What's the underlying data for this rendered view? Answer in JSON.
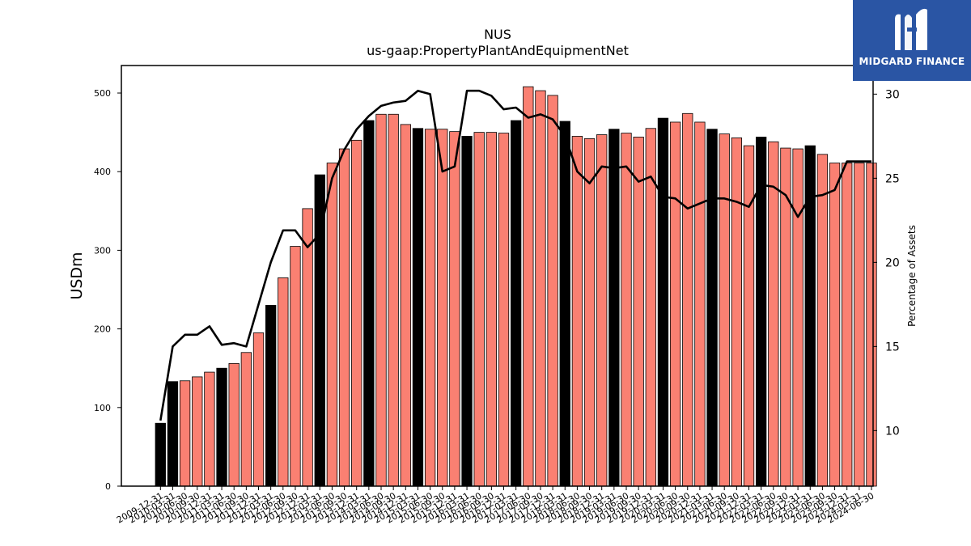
{
  "brand": {
    "name": "MIDGARD FINANCE",
    "icon": "midgard-m-logo-icon",
    "color": "#2a55a4"
  },
  "chart_data": {
    "type": "bar",
    "title": "NUS",
    "subtitle": "us-gaap:PropertyPlantAndEquipmentNet",
    "ylabel": "USDm",
    "y2label": "Percentage of Assets",
    "ylim": [
      0,
      535
    ],
    "y2lim": [
      6.7,
      31.7
    ],
    "yticks": [
      0,
      100,
      200,
      300,
      400,
      500
    ],
    "y2ticks": [
      10,
      15,
      20,
      25,
      30
    ],
    "grid": false,
    "colors": {
      "annual_bar": "#000000",
      "quarter_bar": "#fa8072",
      "line": "#000000"
    },
    "categories": [
      "2009-12-31",
      "2010-03-31",
      "2010-06-30",
      "2010-09-30",
      "2010-12-31",
      "2011-03-31",
      "2011-06-30",
      "2011-09-30",
      "2011-12-31",
      "2012-03-31",
      "2012-06-30",
      "2012-09-30",
      "2012-12-31",
      "2013-03-31",
      "2013-06-30",
      "2013-09-30",
      "2013-12-31",
      "2014-03-31",
      "2014-06-30",
      "2014-09-30",
      "2014-12-31",
      "2015-03-31",
      "2015-06-30",
      "2015-09-30",
      "2015-12-31",
      "2016-03-31",
      "2016-06-30",
      "2016-09-30",
      "2016-12-31",
      "2017-03-31",
      "2017-06-30",
      "2017-09-30",
      "2017-12-31",
      "2018-03-31",
      "2018-06-30",
      "2018-09-30",
      "2018-12-31",
      "2019-03-31",
      "2019-06-30",
      "2019-09-30",
      "2019-12-31",
      "2020-03-31",
      "2020-06-30",
      "2020-09-30",
      "2020-12-31",
      "2021-03-31",
      "2021-06-30",
      "2021-09-30",
      "2021-12-31",
      "2022-03-31",
      "2022-06-30",
      "2022-09-30",
      "2022-12-31",
      "2023-03-31",
      "2023-06-30",
      "2023-09-30",
      "2023-12-31",
      "2024-03-31",
      "2024-06-30"
    ],
    "series": [
      {
        "kind": "bar",
        "values": [
          80,
          133,
          134,
          139,
          145,
          150,
          156,
          170,
          195,
          230,
          265,
          305,
          353,
          396,
          411,
          429,
          440,
          465,
          473,
          473,
          460,
          455,
          454,
          454,
          451,
          445,
          450,
          450,
          449,
          465,
          508,
          503,
          497,
          464,
          445,
          442,
          447,
          454,
          449,
          444,
          455,
          468,
          463,
          474,
          463,
          454,
          448,
          443,
          433,
          444,
          438,
          430,
          429,
          433,
          422,
          411,
          411,
          411,
          411
        ],
        "annual_flags": [
          1,
          1,
          0,
          0,
          0,
          1,
          0,
          0,
          0,
          1,
          0,
          0,
          0,
          1,
          0,
          0,
          0,
          1,
          0,
          0,
          0,
          1,
          0,
          0,
          0,
          1,
          0,
          0,
          0,
          1,
          0,
          0,
          0,
          1,
          0,
          0,
          0,
          1,
          0,
          0,
          0,
          1,
          0,
          0,
          0,
          1,
          0,
          0,
          0,
          1,
          0,
          0,
          0,
          1,
          0,
          0,
          0,
          0,
          0
        ]
      },
      {
        "kind": "line",
        "axis": "right",
        "values": [
          10.6,
          15.0,
          15.7,
          15.7,
          16.2,
          15.1,
          15.2,
          15.0,
          17.5,
          20.0,
          21.9,
          21.9,
          20.9,
          21.7,
          25.0,
          26.7,
          27.9,
          28.7,
          29.3,
          29.5,
          29.6,
          30.2,
          30.0,
          25.4,
          25.7,
          30.2,
          30.2,
          29.9,
          29.1,
          29.2,
          28.6,
          28.8,
          28.5,
          27.5,
          25.4,
          24.7,
          25.7,
          25.6,
          25.7,
          24.8,
          25.1,
          23.9,
          23.8,
          23.2,
          23.5,
          23.8,
          23.8,
          23.6,
          23.3,
          24.6,
          24.5,
          24.0,
          22.7,
          23.9,
          24.0,
          24.3,
          26.0,
          26.0,
          26.0
        ]
      }
    ]
  }
}
